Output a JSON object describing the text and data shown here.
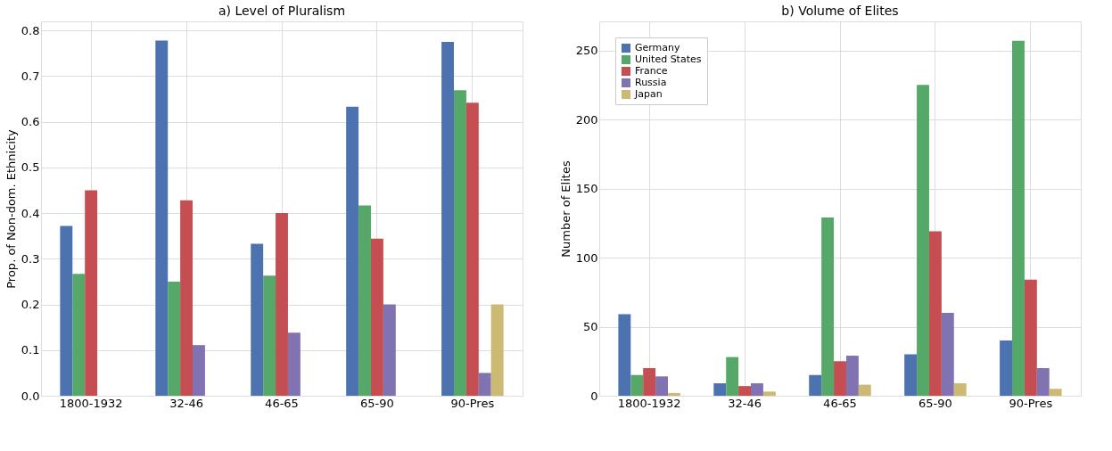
{
  "chart_data": [
    {
      "type": "bar",
      "title": "a) Level of Pluralism",
      "ylabel": "Prop. of Non-dom. Ethnicity",
      "categories": [
        "1800-1932",
        "32-46",
        "46-65",
        "65-90",
        "90-Pres"
      ],
      "series": [
        {
          "color": "#4c72b0",
          "values": [
            0.372,
            0.778,
            0.333,
            0.633,
            0.775
          ]
        },
        {
          "color": "#55a868",
          "values": [
            0.267,
            0.25,
            0.263,
            0.417,
            0.669
          ]
        },
        {
          "color": "#c44e52",
          "values": [
            0.45,
            0.428,
            0.4,
            0.344,
            0.642
          ]
        },
        {
          "color": "#8172b2",
          "values": [
            0,
            0.111,
            0.138,
            0.2,
            0.05
          ]
        },
        {
          "color": "#ccb974",
          "values": [
            0,
            0,
            0,
            0,
            0.2
          ]
        }
      ],
      "ylim": [
        0,
        0.82
      ],
      "yticks": [
        {
          "value": 0,
          "label": "0.0"
        },
        0.1,
        0.2,
        0.3,
        0.4,
        0.5,
        0.6,
        0.7,
        0.8
      ],
      "grid": true,
      "legend": false
    },
    {
      "type": "bar",
      "title": "b) Volume of Elites",
      "ylabel": "Number of Elites",
      "categories": [
        "1800-1932",
        "32-46",
        "46-65",
        "65-90",
        "90-Pres"
      ],
      "series": [
        {
          "name": "Germany",
          "color": "#4c72b0",
          "values": [
            59,
            9,
            15,
            30,
            40
          ]
        },
        {
          "name": "United States",
          "color": "#55a868",
          "values": [
            15,
            28,
            129,
            225,
            257
          ]
        },
        {
          "name": "France",
          "color": "#c44e52",
          "values": [
            20,
            7,
            25,
            119,
            84
          ]
        },
        {
          "name": "Russia",
          "color": "#8172b2",
          "values": [
            14,
            9,
            29,
            60,
            20
          ]
        },
        {
          "name": "Japan",
          "color": "#ccb974",
          "values": [
            2,
            3,
            8,
            9,
            5
          ]
        }
      ],
      "ylim": [
        0,
        271
      ],
      "yticks": [
        0,
        50,
        100,
        150,
        200,
        250
      ],
      "grid": true,
      "legend": "top left"
    }
  ]
}
